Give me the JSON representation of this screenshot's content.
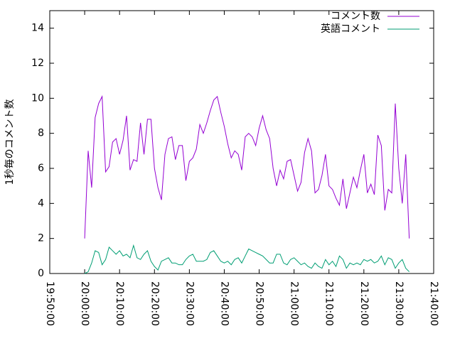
{
  "chart_data": {
    "type": "line",
    "ylabel": "1秒毎のコメント数",
    "x": [
      "20:00:00",
      "20:01:00",
      "20:02:00",
      "20:03:00",
      "20:04:00",
      "20:05:00",
      "20:06:00",
      "20:07:00",
      "20:08:00",
      "20:09:00",
      "20:10:00",
      "20:11:00",
      "20:12:00",
      "20:13:00",
      "20:14:00",
      "20:15:00",
      "20:16:00",
      "20:17:00",
      "20:18:00",
      "20:19:00",
      "20:20:00",
      "20:21:00",
      "20:22:00",
      "20:23:00",
      "20:24:00",
      "20:25:00",
      "20:26:00",
      "20:27:00",
      "20:28:00",
      "20:29:00",
      "20:30:00",
      "20:31:00",
      "20:32:00",
      "20:33:00",
      "20:34:00",
      "20:35:00",
      "20:36:00",
      "20:37:00",
      "20:38:00",
      "20:39:00",
      "20:40:00",
      "20:41:00",
      "20:42:00",
      "20:43:00",
      "20:44:00",
      "20:45:00",
      "20:46:00",
      "20:47:00",
      "20:48:00",
      "20:49:00",
      "20:50:00",
      "20:51:00",
      "20:52:00",
      "20:53:00",
      "20:54:00",
      "20:55:00",
      "20:56:00",
      "20:57:00",
      "20:58:00",
      "20:59:00",
      "21:00:00",
      "21:01:00",
      "21:02:00",
      "21:03:00",
      "21:04:00",
      "21:05:00",
      "21:06:00",
      "21:07:00",
      "21:08:00",
      "21:09:00",
      "21:10:00",
      "21:11:00",
      "21:12:00",
      "21:13:00",
      "21:14:00",
      "21:15:00",
      "21:16:00",
      "21:17:00",
      "21:18:00",
      "21:19:00",
      "21:20:00",
      "21:21:00",
      "21:22:00",
      "21:23:00",
      "21:24:00",
      "21:25:00",
      "21:26:00",
      "21:27:00",
      "21:28:00",
      "21:29:00",
      "21:30:00",
      "21:31:00",
      "21:32:00",
      "21:33:00"
    ],
    "series": [
      {
        "name": "コメント数",
        "color": "#9400d3",
        "values": [
          2.0,
          7.0,
          4.9,
          8.9,
          9.7,
          10.1,
          5.8,
          6.1,
          7.5,
          7.7,
          6.8,
          7.6,
          9.0,
          5.9,
          6.5,
          6.4,
          8.6,
          6.8,
          8.8,
          8.8,
          6.0,
          4.9,
          4.2,
          6.8,
          7.7,
          7.8,
          6.5,
          7.3,
          7.3,
          5.3,
          6.4,
          6.6,
          7.1,
          8.5,
          8.0,
          8.6,
          9.3,
          9.9,
          10.1,
          9.2,
          8.4,
          7.4,
          6.6,
          7.0,
          6.8,
          5.9,
          7.8,
          8.0,
          7.8,
          7.3,
          8.3,
          9.0,
          8.2,
          7.7,
          6.0,
          5.0,
          5.9,
          5.4,
          6.4,
          6.5,
          5.6,
          4.7,
          5.2,
          6.9,
          7.7,
          7.0,
          4.6,
          4.8,
          5.6,
          6.8,
          5.0,
          4.8,
          4.3,
          3.9,
          5.4,
          3.7,
          4.6,
          5.5,
          4.9,
          5.9,
          6.8,
          4.6,
          5.1,
          4.5,
          7.9,
          7.3,
          3.6,
          4.8,
          4.6,
          9.7,
          6.0,
          4.0,
          6.8,
          2.0
        ]
      },
      {
        "name": "英語コメント",
        "color": "#009e73",
        "values": [
          0.0,
          0.1,
          0.6,
          1.3,
          1.2,
          0.5,
          0.8,
          1.5,
          1.3,
          1.1,
          1.3,
          1.0,
          1.1,
          0.9,
          1.6,
          0.9,
          0.8,
          1.1,
          1.3,
          0.7,
          0.4,
          0.2,
          0.7,
          0.8,
          0.9,
          0.6,
          0.6,
          0.5,
          0.5,
          0.8,
          1.0,
          1.1,
          0.7,
          0.7,
          0.7,
          0.8,
          1.2,
          1.3,
          1.0,
          0.7,
          0.6,
          0.7,
          0.5,
          0.8,
          0.9,
          0.6,
          1.0,
          1.4,
          1.3,
          1.2,
          1.1,
          1.0,
          0.8,
          0.6,
          0.6,
          1.1,
          1.1,
          0.6,
          0.5,
          0.8,
          0.9,
          0.7,
          0.5,
          0.6,
          0.4,
          0.3,
          0.6,
          0.4,
          0.3,
          0.8,
          0.5,
          0.7,
          0.4,
          1.0,
          0.8,
          0.3,
          0.6,
          0.5,
          0.6,
          0.5,
          0.8,
          0.7,
          0.8,
          0.6,
          0.7,
          1.0,
          0.5,
          0.9,
          0.8,
          0.3,
          0.6,
          0.8,
          0.3,
          0.1
        ]
      }
    ],
    "xlim": [
      "19:50:00",
      "21:40:00"
    ],
    "xticks": [
      "19:50:00",
      "20:00:00",
      "20:10:00",
      "20:20:00",
      "20:30:00",
      "20:40:00",
      "20:50:00",
      "21:00:00",
      "21:10:00",
      "21:20:00",
      "21:30:00",
      "21:40:00"
    ],
    "ylim": [
      0,
      15
    ],
    "yticks": [
      0,
      2,
      4,
      6,
      8,
      10,
      12,
      14
    ],
    "grid": false,
    "legend": "top-right"
  }
}
